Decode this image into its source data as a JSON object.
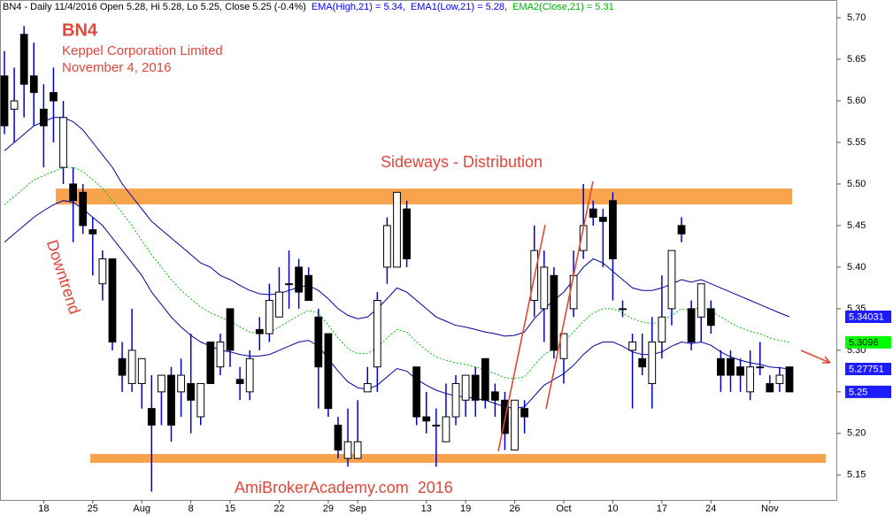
{
  "chart_data": {
    "type": "candlestick",
    "title_parts": [
      {
        "text": "BN4 - Daily 11/4/2016 Open 5.28, Hi 5.28, Lo 5.25, Close 5.25 (-0.4%)",
        "color": "#000000"
      },
      {
        "text": "EMA(High,21) = 5.34,",
        "color": "#0000ff"
      },
      {
        "text": "EMA1(Low,21) = 5.28,",
        "color": "#0000ff"
      },
      {
        "text": "EMA2(Close,21) = 5.31",
        "color": "#00b000"
      }
    ],
    "annotations": {
      "symbol": "BN4",
      "company": "Keppel Corporation Limited",
      "date": "November 4, 2016",
      "phase": "Sideways - Distribution",
      "trend": "Downtrend",
      "watermark": "AmiBrokerAcademy.com  2016"
    },
    "categories": [
      null,
      null,
      null,
      null,
      "18",
      null,
      null,
      null,
      null,
      "25",
      null,
      null,
      null,
      null,
      "Aug",
      null,
      null,
      null,
      null,
      "8",
      null,
      null,
      null,
      "15",
      null,
      null,
      null,
      null,
      "22",
      null,
      null,
      null,
      null,
      "29",
      null,
      null,
      "Sep",
      null,
      null,
      null,
      null,
      null,
      null,
      "13",
      null,
      null,
      null,
      "19",
      null,
      null,
      null,
      null,
      "26",
      null,
      null,
      null,
      null,
      "Oct",
      null,
      null,
      null,
      null,
      "10",
      null,
      null,
      null,
      null,
      "17",
      null,
      null,
      null,
      null,
      "24",
      null,
      null,
      null,
      null,
      null,
      "Nov",
      null,
      null
    ],
    "open": [
      5.63,
      5.59,
      5.68,
      5.63,
      5.59,
      5.61,
      5.52,
      5.5,
      5.49,
      5.445,
      5.38,
      5.41,
      5.29,
      5.26,
      5.26,
      5.23,
      5.25,
      5.27,
      5.25,
      5.26,
      5.22,
      5.31,
      5.28,
      5.35,
      5.265,
      5.25,
      5.325,
      5.32,
      5.34,
      5.38,
      5.4,
      5.39,
      5.34,
      5.32,
      5.21,
      5.17,
      5.17,
      5.25,
      5.28,
      5.4,
      5.4,
      5.47,
      5.28,
      5.22,
      5.21,
      5.19,
      5.22,
      5.24,
      5.27,
      5.29,
      5.25,
      5.24,
      5.18,
      5.23,
      5.36,
      5.35,
      5.39,
      5.29,
      5.35,
      5.42,
      5.47,
      5.46,
      5.48,
      5.35,
      5.3,
      5.29,
      5.26,
      5.31,
      5.35,
      5.45,
      5.35,
      5.34,
      5.35,
      5.29,
      5.29,
      5.28,
      5.25,
      5.28,
      5.26,
      5.26,
      5.28
    ],
    "high": [
      5.66,
      5.64,
      5.69,
      5.67,
      5.62,
      5.64,
      5.6,
      5.52,
      5.5,
      5.46,
      5.42,
      5.41,
      5.31,
      5.35,
      5.29,
      5.27,
      5.27,
      5.28,
      5.29,
      5.32,
      5.26,
      5.31,
      5.32,
      5.35,
      5.28,
      5.3,
      5.34,
      5.38,
      5.4,
      5.42,
      5.41,
      5.4,
      5.35,
      5.32,
      5.22,
      5.23,
      5.24,
      5.28,
      5.37,
      5.46,
      5.49,
      5.48,
      5.28,
      5.25,
      5.23,
      5.26,
      5.27,
      5.27,
      5.28,
      5.29,
      5.26,
      5.25,
      5.24,
      5.24,
      5.45,
      5.42,
      5.4,
      5.32,
      5.42,
      5.5,
      5.48,
      5.47,
      5.49,
      5.36,
      5.32,
      5.32,
      5.34,
      5.39,
      5.42,
      5.46,
      5.36,
      5.38,
      5.36,
      5.3,
      5.3,
      5.29,
      5.3,
      5.31,
      5.27,
      5.28,
      5.28
    ],
    "low": [
      5.56,
      5.55,
      5.58,
      5.57,
      5.52,
      5.55,
      5.5,
      5.43,
      5.44,
      5.39,
      5.36,
      5.3,
      5.25,
      5.25,
      5.23,
      5.13,
      5.21,
      5.19,
      5.22,
      5.2,
      5.21,
      5.26,
      5.27,
      5.28,
      5.24,
      5.24,
      5.3,
      5.31,
      5.34,
      5.35,
      5.35,
      5.36,
      5.23,
      5.22,
      5.17,
      5.16,
      5.17,
      5.25,
      5.25,
      5.38,
      5.4,
      5.4,
      5.21,
      5.2,
      5.16,
      5.19,
      5.21,
      5.22,
      5.22,
      5.23,
      5.22,
      5.18,
      5.18,
      5.2,
      5.34,
      5.31,
      5.29,
      5.26,
      5.34,
      5.41,
      5.45,
      5.4,
      5.36,
      5.34,
      5.23,
      5.27,
      5.23,
      5.29,
      5.33,
      5.43,
      5.3,
      5.31,
      5.32,
      5.25,
      5.25,
      5.25,
      5.24,
      5.27,
      5.25,
      5.25,
      5.25
    ],
    "close": [
      5.57,
      5.6,
      5.62,
      5.61,
      5.57,
      5.6,
      5.58,
      5.48,
      5.45,
      5.44,
      5.41,
      5.31,
      5.27,
      5.3,
      5.29,
      5.21,
      5.27,
      5.21,
      5.27,
      5.24,
      5.26,
      5.26,
      5.31,
      5.3,
      5.26,
      5.29,
      5.32,
      5.36,
      5.37,
      5.38,
      5.37,
      5.36,
      5.28,
      5.23,
      5.18,
      5.19,
      5.19,
      5.26,
      5.36,
      5.45,
      5.49,
      5.41,
      5.22,
      5.215,
      5.21,
      5.22,
      5.26,
      5.27,
      5.24,
      5.24,
      5.24,
      5.2,
      5.24,
      5.22,
      5.42,
      5.4,
      5.3,
      5.32,
      5.39,
      5.45,
      5.46,
      5.455,
      5.41,
      5.35,
      5.31,
      5.28,
      5.31,
      5.34,
      5.42,
      5.44,
      5.31,
      5.38,
      5.33,
      5.27,
      5.27,
      5.27,
      5.28,
      5.28,
      5.25,
      5.27,
      5.25
    ],
    "up_color": "#ffffff",
    "down_color": "#000000",
    "wick_color": "#0000cc",
    "close_tag_color": "#1c1cff",
    "close_tag_text": "#ffffff",
    "series": [
      {
        "color": "#0000a0",
        "style": "solid",
        "tag_color": "#1c1cff",
        "tag_text": "#ffffff",
        "values": [
          5.54,
          5.55,
          5.56,
          5.57,
          5.575,
          5.58,
          5.58,
          5.575,
          5.565,
          5.55,
          5.535,
          5.52,
          5.5,
          5.485,
          5.47,
          5.455,
          5.445,
          5.435,
          5.425,
          5.415,
          5.405,
          5.4,
          5.39,
          5.385,
          5.378,
          5.372,
          5.368,
          5.367,
          5.368,
          5.372,
          5.376,
          5.378,
          5.372,
          5.362,
          5.35,
          5.342,
          5.338,
          5.34,
          5.35,
          5.362,
          5.375,
          5.37,
          5.36,
          5.35,
          5.34,
          5.335,
          5.33,
          5.328,
          5.325,
          5.322,
          5.32,
          5.317,
          5.318,
          5.322,
          5.338,
          5.35,
          5.36,
          5.37,
          5.385,
          5.4,
          5.41,
          5.405,
          5.395,
          5.385,
          5.375,
          5.372,
          5.372,
          5.375,
          5.38,
          5.385,
          5.382,
          5.385,
          5.38,
          5.375,
          5.37,
          5.365,
          5.36,
          5.355,
          5.35,
          5.345,
          5.34031
        ]
      },
      {
        "color": "#00c000",
        "style": "dotted",
        "tag_color": "#00ff00",
        "tag_text": "#000000",
        "values": [
          5.475,
          5.485,
          5.495,
          5.505,
          5.51,
          5.515,
          5.52,
          5.52,
          5.515,
          5.505,
          5.495,
          5.48,
          5.465,
          5.45,
          5.432,
          5.415,
          5.4,
          5.385,
          5.372,
          5.362,
          5.352,
          5.345,
          5.34,
          5.335,
          5.328,
          5.322,
          5.32,
          5.322,
          5.328,
          5.335,
          5.342,
          5.348,
          5.345,
          5.33,
          5.315,
          5.302,
          5.296,
          5.296,
          5.303,
          5.315,
          5.325,
          5.322,
          5.31,
          5.3,
          5.292,
          5.288,
          5.285,
          5.283,
          5.28,
          5.276,
          5.272,
          5.267,
          5.266,
          5.268,
          5.282,
          5.295,
          5.302,
          5.31,
          5.322,
          5.335,
          5.345,
          5.35,
          5.35,
          5.345,
          5.338,
          5.334,
          5.332,
          5.335,
          5.342,
          5.35,
          5.348,
          5.352,
          5.348,
          5.34,
          5.333,
          5.327,
          5.323,
          5.32,
          5.315,
          5.312,
          5.3096
        ]
      },
      {
        "color": "#0000a0",
        "style": "solid",
        "tag_color": "#1c1cff",
        "tag_text": "#ffffff",
        "values": [
          5.43,
          5.44,
          5.45,
          5.46,
          5.468,
          5.475,
          5.48,
          5.478,
          5.47,
          5.46,
          5.45,
          5.435,
          5.42,
          5.405,
          5.39,
          5.37,
          5.355,
          5.34,
          5.328,
          5.318,
          5.31,
          5.305,
          5.3,
          5.298,
          5.295,
          5.293,
          5.293,
          5.295,
          5.3,
          5.305,
          5.31,
          5.312,
          5.305,
          5.29,
          5.275,
          5.262,
          5.255,
          5.253,
          5.258,
          5.268,
          5.278,
          5.275,
          5.265,
          5.258,
          5.252,
          5.248,
          5.245,
          5.244,
          5.242,
          5.24,
          5.236,
          5.232,
          5.23,
          5.232,
          5.245,
          5.258,
          5.265,
          5.272,
          5.282,
          5.295,
          5.305,
          5.31,
          5.31,
          5.305,
          5.298,
          5.295,
          5.295,
          5.298,
          5.305,
          5.31,
          5.308,
          5.31,
          5.306,
          5.298,
          5.292,
          5.288,
          5.285,
          5.283,
          5.28,
          5.279,
          5.27751
        ]
      }
    ],
    "bands": [
      {
        "value": 5.485,
        "color": "#f79a3c"
      },
      {
        "value": 5.17,
        "color": "#f79a3c"
      }
    ],
    "ylim": [
      5.12,
      5.7213
    ],
    "yticks": [
      5.15,
      {
        "value": 5.2,
        "label": "5.20"
      },
      5.25,
      {
        "value": 5.3,
        "label": "5.30"
      },
      5.35,
      {
        "value": 5.4,
        "label": "5.40"
      },
      5.45,
      {
        "value": 5.5,
        "label": "5.50"
      },
      5.55,
      {
        "value": 5.6,
        "label": "5.60"
      },
      5.65,
      {
        "value": 5.7,
        "label": "5.70"
      }
    ]
  }
}
